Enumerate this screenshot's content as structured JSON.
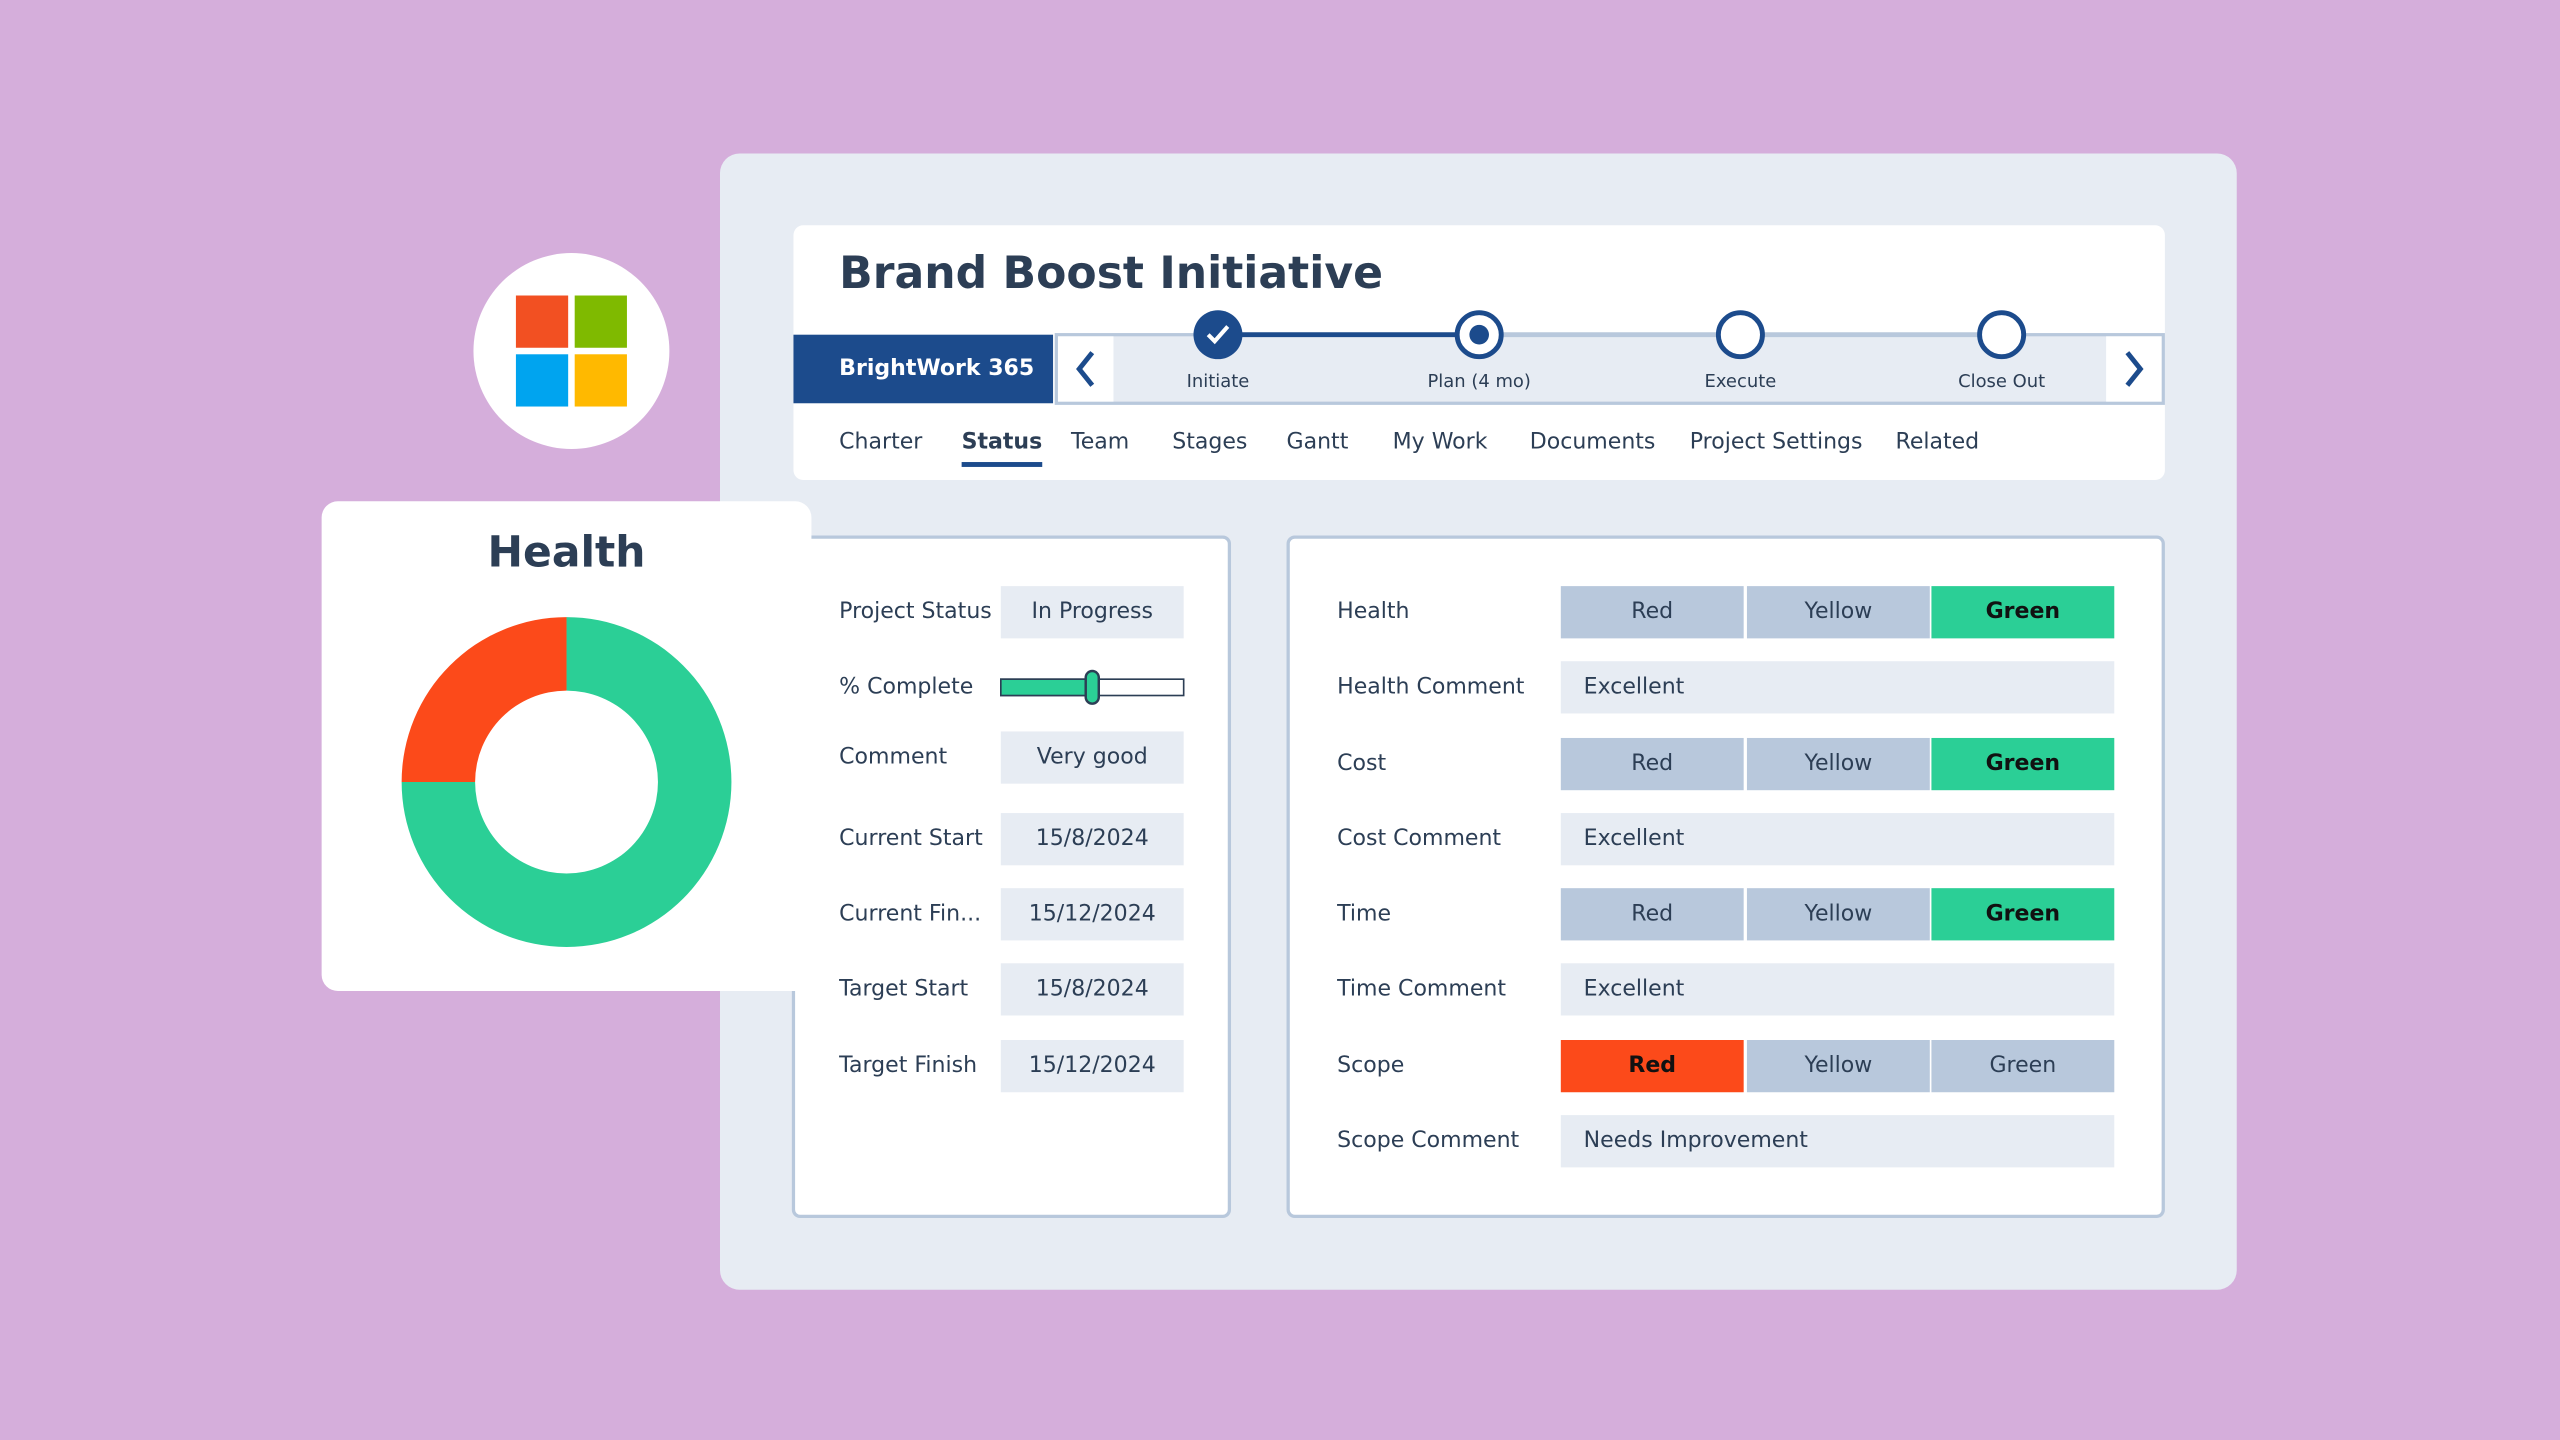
{
  "health_card": {
    "title": "Health",
    "segments": [
      {
        "value": 75,
        "color": "#2bcf96"
      },
      {
        "value": 25,
        "color": "#fc4a1a"
      }
    ]
  },
  "project": {
    "title": "Brand Boost Initiative",
    "brand": "BrightWork 365",
    "stages": [
      {
        "label": "Initiate",
        "state": "done"
      },
      {
        "label": "Plan (4 mo)",
        "state": "current"
      },
      {
        "label": "Execute",
        "state": "todo"
      },
      {
        "label": "Close Out",
        "state": "todo"
      }
    ],
    "tabs": [
      "Charter",
      "Status",
      "Team",
      "Stages",
      "Gantt",
      "My Work",
      "Documents",
      "Project Settings",
      "Related"
    ],
    "active_tab": 1
  },
  "status_fields": [
    {
      "label": "Project Status",
      "value": "In Progress"
    },
    {
      "label": "% Complete",
      "percent": 50
    },
    {
      "label": "Comment",
      "value": "Very good"
    },
    {
      "label": "Current Start",
      "value": "15/8/2024"
    },
    {
      "label": "Current Fin...",
      "value": "15/12/2024"
    },
    {
      "label": "Target Start",
      "value": "15/8/2024"
    },
    {
      "label": "Target Finish",
      "value": "15/12/2024"
    }
  ],
  "ratings": {
    "options": [
      "Red",
      "Yellow",
      "Green"
    ],
    "rows": [
      {
        "label": "Health",
        "selected": 2
      },
      {
        "label": "Health Comment",
        "text": "Excellent"
      },
      {
        "label": "Cost",
        "selected": 2
      },
      {
        "label": "Cost Comment",
        "text": "Excellent"
      },
      {
        "label": "Time",
        "selected": 2
      },
      {
        "label": "Time Comment",
        "text": "Excellent"
      },
      {
        "label": "Scope",
        "selected": 0
      },
      {
        "label": "Scope Comment",
        "text": "Needs Improvement"
      }
    ]
  }
}
